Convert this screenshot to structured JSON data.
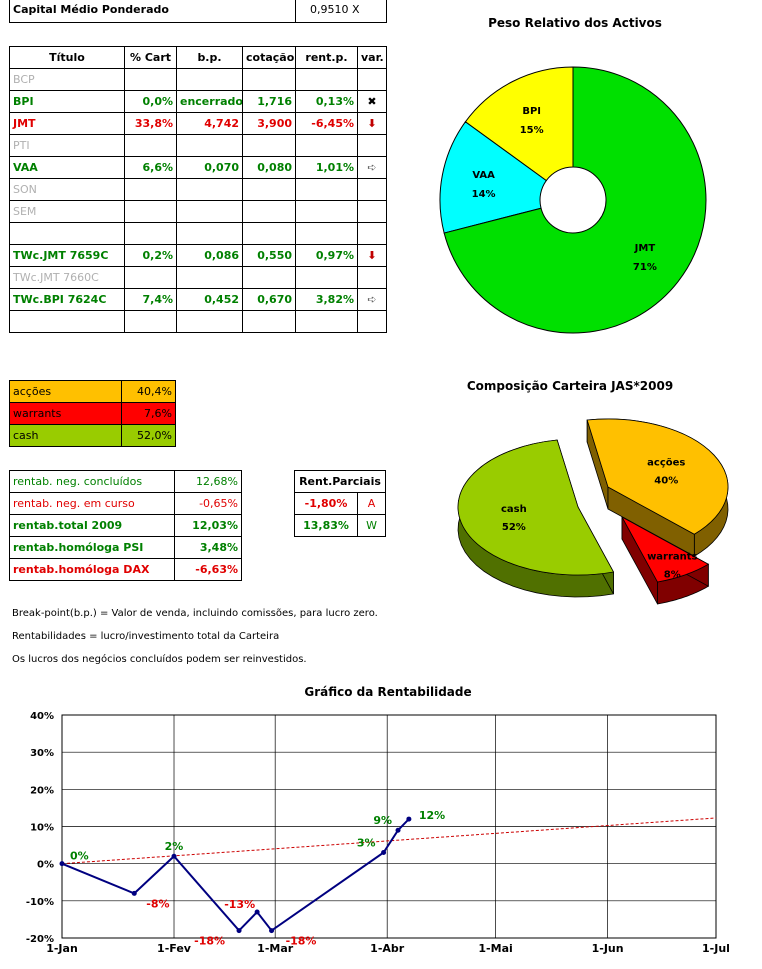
{
  "capital": {
    "label": "Capital Médio Ponderado",
    "value": "0,9510 X"
  },
  "table": {
    "headers": [
      "Título",
      "% Cart",
      "b.p.",
      "cotação",
      "rent.p.",
      "var."
    ],
    "rows": [
      {
        "titulo": "BCP",
        "cart": "",
        "bp": "",
        "cot": "",
        "rent": "",
        "var": "",
        "style": "gray"
      },
      {
        "titulo": "BPI",
        "cart": "0,0%",
        "bp": "encerrado",
        "cot": "1,716",
        "rent": "0,13%",
        "var": "✖",
        "style": "green"
      },
      {
        "titulo": "JMT",
        "cart": "33,8%",
        "bp": "4,742",
        "cot": "3,900",
        "rent": "-6,45%",
        "var": "⬇",
        "style": "red"
      },
      {
        "titulo": "PTI",
        "cart": "",
        "bp": "",
        "cot": "",
        "rent": "",
        "var": "",
        "style": "gray"
      },
      {
        "titulo": "VAA",
        "cart": "6,6%",
        "bp": "0,070",
        "cot": "0,080",
        "rent": "1,01%",
        "var": "➪",
        "style": "green"
      },
      {
        "titulo": "SON",
        "cart": "",
        "bp": "",
        "cot": "",
        "rent": "",
        "var": "",
        "style": "gray"
      },
      {
        "titulo": "SEM",
        "cart": "",
        "bp": "",
        "cot": "",
        "rent": "",
        "var": "",
        "style": "gray"
      },
      {
        "titulo": "",
        "cart": "",
        "bp": "",
        "cot": "",
        "rent": "",
        "var": "",
        "style": "gray"
      },
      {
        "titulo": "TWc.JMT 7659C",
        "cart": "0,2%",
        "bp": "0,086",
        "cot": "0,550",
        "rent": "0,97%",
        "var": "⬇",
        "style": "green"
      },
      {
        "titulo": "TWc.JMT 7660C",
        "cart": "",
        "bp": "",
        "cot": "",
        "rent": "",
        "var": "",
        "style": "gray"
      },
      {
        "titulo": "TWc.BPI 7624C",
        "cart": "7,4%",
        "bp": "0,452",
        "cot": "0,670",
        "rent": "3,82%",
        "var": "➪",
        "style": "green"
      },
      {
        "titulo": "",
        "cart": "",
        "bp": "",
        "cot": "",
        "rent": "",
        "var": "",
        "style": "gray"
      }
    ]
  },
  "composition": [
    {
      "label": "acções",
      "value": "40,4%",
      "color": "#ffc000"
    },
    {
      "label": "warrants",
      "value": "7,6%",
      "color": "#ff0000"
    },
    {
      "label": "cash",
      "value": "52,0%",
      "color": "#99cc00"
    }
  ],
  "rentab": [
    {
      "label": "rentab. neg. concluídos",
      "value": "12,68%",
      "style": "green-normal"
    },
    {
      "label": "rentab. neg. em curso",
      "value": "-0,65%",
      "style": "red-normal"
    },
    {
      "label": "rentab.total 2009",
      "value": "12,03%",
      "style": "green-bold"
    },
    {
      "label": "rentab.homóloga PSI",
      "value": "3,48%",
      "style": "green-bold"
    },
    {
      "label": "rentab.homóloga DAX",
      "value": "-6,63%",
      "style": "red-bold"
    }
  ],
  "parciais": {
    "header": "Rent.Parciais",
    "rows": [
      {
        "value": "-1,80%",
        "tag": "A",
        "style": "red"
      },
      {
        "value": "13,83%",
        "tag": "W",
        "style": "green"
      }
    ]
  },
  "notes": [
    "Break-point(b.p.) = Valor de venda, incluindo comissões, para lucro zero.",
    "Rentabilidades = lucro/investimento total da Carteira",
    "Os lucros dos negócios concluídos podem ser reinvestidos."
  ],
  "chart_data": [
    {
      "type": "pie",
      "title": "Peso Relativo dos Activos",
      "variant": "doughnut",
      "labels": [
        "BPI",
        "VAA",
        "JMT"
      ],
      "values": [
        15,
        14,
        71
      ],
      "value_labels": [
        "15%",
        "14%",
        "71%"
      ],
      "colors": [
        "#ffff00",
        "#00ffff",
        "#00e000"
      ]
    },
    {
      "type": "pie",
      "title": "Composição Carteira JAS*2009",
      "variant": "3d",
      "labels": [
        "acções",
        "warrants",
        "cash"
      ],
      "values": [
        40,
        8,
        52
      ],
      "value_labels": [
        "40%",
        "8%",
        "52%"
      ],
      "colors": [
        "#ffc000",
        "#ff0000",
        "#99cc00"
      ]
    },
    {
      "type": "line",
      "title": "Gráfico da Rentabilidade",
      "x_ticks": [
        "1-Jan",
        "1-Fev",
        "1-Mar",
        "1-Abr",
        "1-Mai",
        "1-Jun",
        "1-Jul"
      ],
      "ylim": [
        -20,
        40
      ],
      "y_ticks": [
        "-20%",
        "-10%",
        "0%",
        "10%",
        "20%",
        "30%",
        "40%"
      ],
      "grid": true,
      "series": [
        {
          "x": [
            "2009-01-01",
            "2009-01-21",
            "2009-02-01",
            "2009-02-19",
            "2009-02-24",
            "2009-02-28",
            "2009-03-31",
            "2009-04-04",
            "2009-04-07"
          ],
          "y": [
            0,
            -8,
            2,
            -18,
            -13,
            -18,
            3,
            9,
            12
          ],
          "labels": [
            "0%",
            "-8%",
            "2%",
            "-18%",
            "-13%",
            "-18%",
            "3%",
            "9%",
            "12%"
          ],
          "color": "#000080"
        }
      ],
      "trend": {
        "x": [
          "2009-01-01",
          "2009-07-01"
        ],
        "y": [
          0,
          12.3
        ],
        "color": "#cc0000",
        "style": "dashed"
      }
    }
  ]
}
